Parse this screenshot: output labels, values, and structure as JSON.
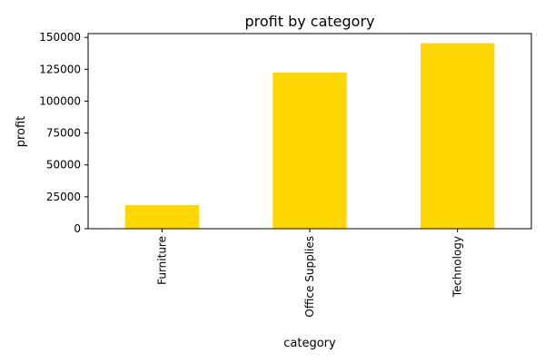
{
  "chart_data": {
    "type": "bar",
    "title": "profit by category",
    "xlabel": "category",
    "ylabel": "profit",
    "categories": [
      "Furniture",
      "Office Supplies",
      "Technology"
    ],
    "values": [
      18451,
      122490,
      145455
    ],
    "ylim": [
      0,
      153000
    ],
    "yticks": [
      0,
      25000,
      50000,
      75000,
      100000,
      125000,
      150000
    ],
    "bar_color": "#FFD700",
    "grid": false,
    "legend": "none"
  }
}
